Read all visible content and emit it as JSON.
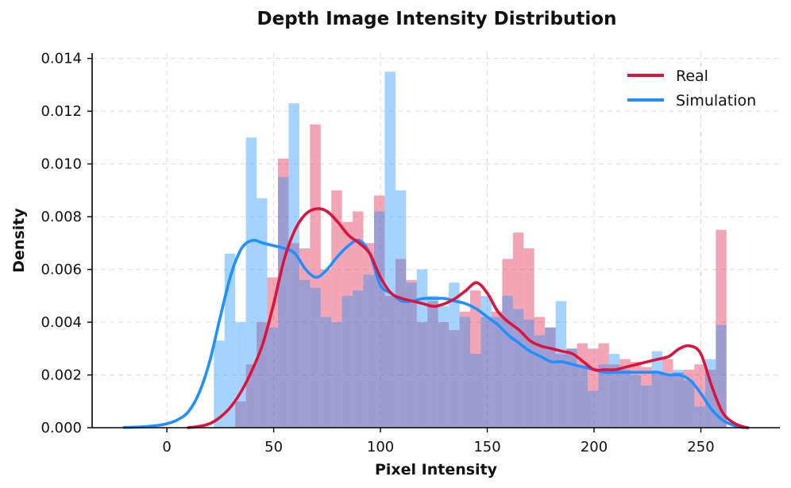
{
  "chart_data": {
    "type": "histogram+kde",
    "title": "Depth Image Intensity Distribution",
    "xlabel": "Pixel Intensity",
    "ylabel": "Density",
    "xlim": [
      -35,
      287
    ],
    "ylim": [
      0,
      0.0142
    ],
    "xticks": [
      0,
      50,
      100,
      150,
      200,
      250
    ],
    "xtick_labels": [
      "0",
      "50",
      "100",
      "150",
      "200",
      "250"
    ],
    "yticks": [
      0,
      0.002,
      0.004,
      0.006,
      0.008,
      0.01,
      0.012,
      0.014
    ],
    "ytick_labels": [
      "0.000",
      "0.002",
      "0.004",
      "0.006",
      "0.008",
      "0.010",
      "0.012",
      "0.014"
    ],
    "grid": true,
    "legend_position": "top-right",
    "series": [
      {
        "name": "Real",
        "color": "#DC143C",
        "bin_start": 22,
        "bin_width": 5,
        "hist": [
          0.0,
          0.0,
          0.001,
          0.0024,
          0.004,
          0.0057,
          0.0102,
          0.007,
          0.0068,
          0.0115,
          0.006,
          0.009,
          0.0078,
          0.0082,
          0.007,
          0.0088,
          0.005,
          0.0064,
          0.0056,
          0.004,
          0.0048,
          0.004,
          0.0037,
          0.0044,
          0.0052,
          0.0042,
          0.0044,
          0.0064,
          0.0074,
          0.0068,
          0.0042,
          0.0038,
          0.0028,
          0.003,
          0.0032,
          0.003,
          0.0032,
          0.0024,
          0.0026,
          0.0025,
          0.0023,
          0.0021,
          0.0026,
          0.0021,
          0.0022,
          0.0024,
          0.0022,
          0.0075
        ],
        "kde_x": [
          10,
          15,
          20,
          25,
          30,
          35,
          40,
          45,
          50,
          55,
          60,
          65,
          70,
          75,
          80,
          85,
          90,
          95,
          100,
          105,
          110,
          115,
          120,
          125,
          130,
          135,
          140,
          145,
          150,
          155,
          160,
          165,
          170,
          175,
          180,
          185,
          190,
          195,
          200,
          205,
          210,
          215,
          220,
          225,
          230,
          235,
          240,
          245,
          250,
          255,
          260,
          265,
          270,
          272
        ],
        "kde_y": [
          0.0,
          5e-05,
          0.00015,
          0.0004,
          0.0008,
          0.0014,
          0.0022,
          0.0032,
          0.0047,
          0.0064,
          0.0075,
          0.0081,
          0.0083,
          0.0082,
          0.0078,
          0.0073,
          0.007,
          0.0066,
          0.0057,
          0.0051,
          0.0049,
          0.0048,
          0.0047,
          0.0046,
          0.0047,
          0.0049,
          0.0052,
          0.0055,
          0.0051,
          0.0044,
          0.004,
          0.0037,
          0.0033,
          0.0031,
          0.003,
          0.0029,
          0.0028,
          0.0025,
          0.0022,
          0.0022,
          0.0022,
          0.0023,
          0.0024,
          0.0025,
          0.0026,
          0.0027,
          0.003,
          0.0031,
          0.0028,
          0.0016,
          0.0006,
          0.0002,
          3e-05,
          0.0
        ]
      },
      {
        "name": "Simulation",
        "color": "#1E90FF",
        "bin_start": 22,
        "bin_width": 5,
        "hist": [
          0.0033,
          0.0066,
          0.004,
          0.011,
          0.0087,
          0.0038,
          0.0095,
          0.0123,
          0.0056,
          0.0053,
          0.0042,
          0.004,
          0.005,
          0.0052,
          0.0058,
          0.0082,
          0.0135,
          0.009,
          0.0055,
          0.006,
          0.005,
          0.0046,
          0.0055,
          0.0042,
          0.0028,
          0.005,
          0.0042,
          0.005,
          0.0045,
          0.0041,
          0.0035,
          0.0038,
          0.0048,
          0.003,
          0.0023,
          0.0014,
          0.0024,
          0.0028,
          0.0022,
          0.002,
          0.0016,
          0.0029,
          0.002,
          0.0022,
          0.0018,
          0.0008,
          0.0026,
          0.0039
        ],
        "kde_x": [
          -20,
          -15,
          -10,
          -5,
          0,
          5,
          10,
          15,
          20,
          25,
          30,
          35,
          40,
          45,
          50,
          55,
          60,
          65,
          70,
          75,
          80,
          85,
          90,
          95,
          100,
          105,
          110,
          115,
          120,
          125,
          130,
          135,
          140,
          145,
          150,
          155,
          160,
          165,
          170,
          175,
          180,
          185,
          190,
          195,
          200,
          205,
          210,
          215,
          220,
          225,
          230,
          235,
          240,
          245,
          250,
          255,
          260,
          265,
          270
        ],
        "kde_y": [
          1e-05,
          2e-05,
          4e-05,
          8e-05,
          0.00015,
          0.0003,
          0.0006,
          0.0013,
          0.0025,
          0.0042,
          0.0058,
          0.0068,
          0.0071,
          0.007,
          0.0069,
          0.0068,
          0.0066,
          0.006,
          0.0057,
          0.006,
          0.0065,
          0.0069,
          0.0071,
          0.0066,
          0.0054,
          0.0051,
          0.0048,
          0.0048,
          0.0049,
          0.0049,
          0.0049,
          0.0048,
          0.0047,
          0.0045,
          0.0042,
          0.0039,
          0.0035,
          0.0032,
          0.0029,
          0.0027,
          0.0025,
          0.0025,
          0.0024,
          0.0023,
          0.0022,
          0.0021,
          0.0021,
          0.0021,
          0.0021,
          0.0021,
          0.0021,
          0.002,
          0.002,
          0.0018,
          0.0013,
          0.0007,
          0.0003,
          0.0001,
          0.0
        ]
      }
    ]
  }
}
